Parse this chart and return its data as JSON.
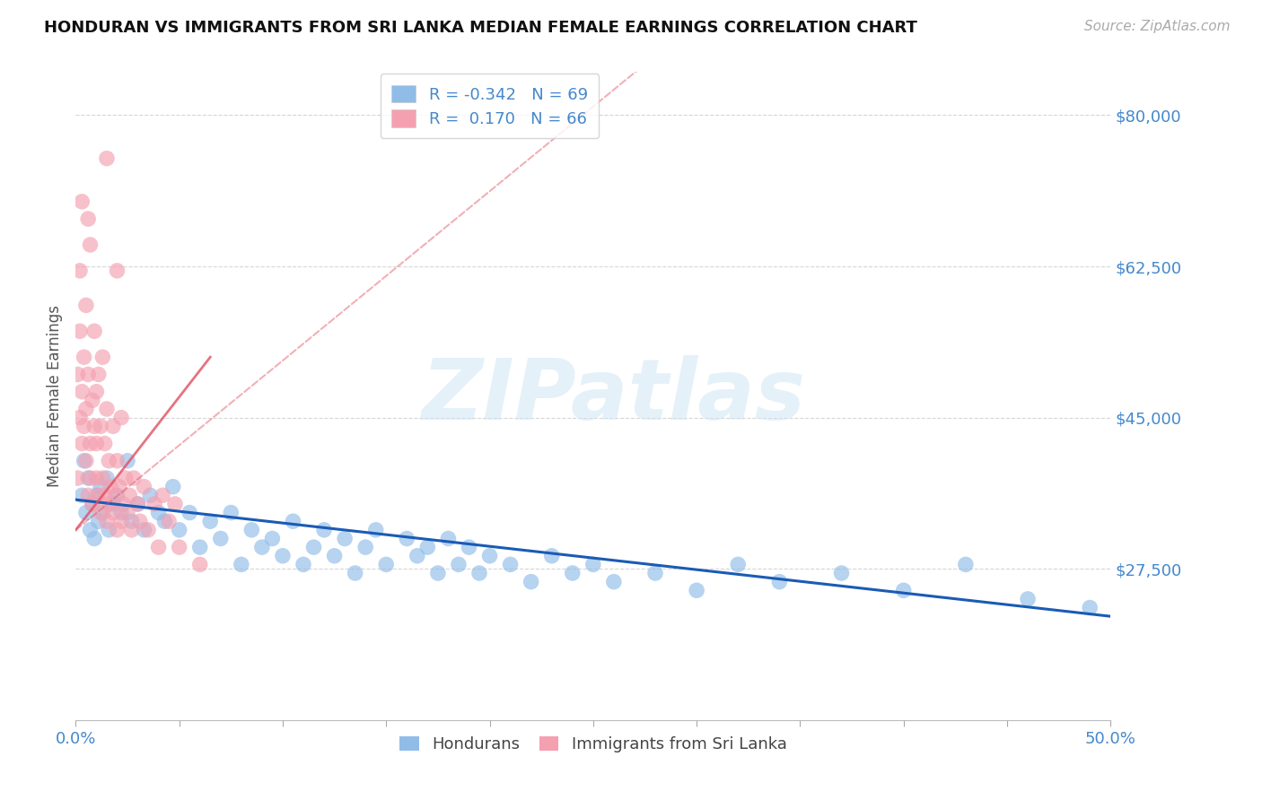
{
  "title": "HONDURAN VS IMMIGRANTS FROM SRI LANKA MEDIAN FEMALE EARNINGS CORRELATION CHART",
  "source": "Source: ZipAtlas.com",
  "ylabel_label": "Median Female Earnings",
  "xlim": [
    0.0,
    0.5
  ],
  "ylim": [
    10000,
    85000
  ],
  "ytick_positions": [
    27500,
    45000,
    62500,
    80000
  ],
  "ytick_labels": [
    "$27,500",
    "$45,000",
    "$62,500",
    "$80,000"
  ],
  "honduran_color": "#90bce8",
  "srilanka_color": "#f4a0b0",
  "honduran_line_color": "#1a5bb5",
  "srilanka_line_color": "#e05060",
  "R_honduran": -0.342,
  "N_honduran": 69,
  "R_srilanka": 0.17,
  "N_srilanka": 66,
  "watermark_text": "ZIPatlas",
  "background_color": "#ffffff",
  "legend_label_honduran": "Hondurans",
  "legend_label_srilanka": "Immigrants from Sri Lanka",
  "honduran_x": [
    0.003,
    0.004,
    0.005,
    0.006,
    0.007,
    0.008,
    0.009,
    0.01,
    0.011,
    0.012,
    0.013,
    0.015,
    0.016,
    0.018,
    0.02,
    0.022,
    0.025,
    0.027,
    0.03,
    0.033,
    0.036,
    0.04,
    0.043,
    0.047,
    0.05,
    0.055,
    0.06,
    0.065,
    0.07,
    0.075,
    0.08,
    0.085,
    0.09,
    0.095,
    0.1,
    0.105,
    0.11,
    0.115,
    0.12,
    0.125,
    0.13,
    0.135,
    0.14,
    0.145,
    0.15,
    0.16,
    0.165,
    0.17,
    0.175,
    0.18,
    0.185,
    0.19,
    0.195,
    0.2,
    0.21,
    0.22,
    0.23,
    0.24,
    0.25,
    0.26,
    0.28,
    0.3,
    0.32,
    0.34,
    0.37,
    0.4,
    0.43,
    0.46,
    0.49
  ],
  "honduran_y": [
    36000,
    40000,
    34000,
    38000,
    32000,
    35000,
    31000,
    36000,
    33000,
    37000,
    34000,
    38000,
    32000,
    35000,
    36000,
    34000,
    40000,
    33000,
    35000,
    32000,
    36000,
    34000,
    33000,
    37000,
    32000,
    34000,
    30000,
    33000,
    31000,
    34000,
    28000,
    32000,
    30000,
    31000,
    29000,
    33000,
    28000,
    30000,
    32000,
    29000,
    31000,
    27000,
    30000,
    32000,
    28000,
    31000,
    29000,
    30000,
    27000,
    31000,
    28000,
    30000,
    27000,
    29000,
    28000,
    26000,
    29000,
    27000,
    28000,
    26000,
    27000,
    25000,
    28000,
    26000,
    27000,
    25000,
    28000,
    24000,
    23000
  ],
  "srilanka_x": [
    0.001,
    0.001,
    0.002,
    0.002,
    0.002,
    0.003,
    0.003,
    0.003,
    0.004,
    0.004,
    0.005,
    0.005,
    0.005,
    0.006,
    0.006,
    0.007,
    0.007,
    0.007,
    0.008,
    0.008,
    0.009,
    0.009,
    0.01,
    0.01,
    0.01,
    0.011,
    0.011,
    0.012,
    0.012,
    0.013,
    0.013,
    0.014,
    0.014,
    0.015,
    0.015,
    0.016,
    0.016,
    0.017,
    0.018,
    0.018,
    0.019,
    0.02,
    0.02,
    0.021,
    0.022,
    0.022,
    0.023,
    0.024,
    0.025,
    0.026,
    0.027,
    0.028,
    0.03,
    0.031,
    0.033,
    0.035,
    0.038,
    0.04,
    0.042,
    0.045,
    0.048,
    0.05,
    0.015,
    0.06,
    0.02,
    0.006
  ],
  "srilanka_y": [
    50000,
    38000,
    62000,
    45000,
    55000,
    48000,
    70000,
    42000,
    52000,
    44000,
    40000,
    58000,
    46000,
    36000,
    50000,
    42000,
    65000,
    38000,
    47000,
    35000,
    44000,
    55000,
    38000,
    42000,
    48000,
    36000,
    50000,
    34000,
    44000,
    38000,
    52000,
    36000,
    42000,
    33000,
    46000,
    35000,
    40000,
    37000,
    34000,
    44000,
    36000,
    32000,
    40000,
    37000,
    33000,
    45000,
    35000,
    38000,
    34000,
    36000,
    32000,
    38000,
    35000,
    33000,
    37000,
    32000,
    35000,
    30000,
    36000,
    33000,
    35000,
    30000,
    75000,
    28000,
    62000,
    68000
  ]
}
